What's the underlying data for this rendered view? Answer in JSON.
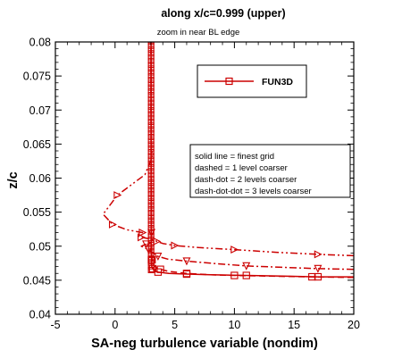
{
  "chart_data": {
    "type": "line",
    "title": "along x/c=0.999 (upper)",
    "subtitle": "zoom in near BL edge",
    "xlabel": "SA-neg turbulence variable (nondim)",
    "ylabel": "z/c",
    "xlim": [
      -5,
      20
    ],
    "ylim": [
      0.04,
      0.08
    ],
    "xticks": [
      "-5",
      "0",
      "5",
      "10",
      "15",
      "20"
    ],
    "yticks": [
      "0.04",
      "0.045",
      "0.05",
      "0.055",
      "0.06",
      "0.065",
      "0.07",
      "0.075",
      "0.08"
    ],
    "grid": false,
    "legend": {
      "position": "top-right",
      "entries": [
        "FUN3D"
      ]
    },
    "annotation": [
      "solid line = finest grid",
      "dashed = 1 level coarser",
      "dash-dot = 2 levels coarser",
      "dash-dot-dot = 3 levels coarser"
    ],
    "colors": {
      "series": "#cc0000",
      "frame": "#000000"
    },
    "series": [
      {
        "style": "solid",
        "x": [
          20,
          17,
          14,
          11,
          8,
          6,
          4.5,
          3.6,
          3.3,
          3.15,
          3.08,
          3.05,
          3.03,
          3.02,
          3.02,
          3.02
        ],
        "y": [
          0.0455,
          0.0455,
          0.0456,
          0.0457,
          0.0458,
          0.0459,
          0.046,
          0.0462,
          0.0464,
          0.0467,
          0.047,
          0.048,
          0.05,
          0.06,
          0.07,
          0.08
        ]
      },
      {
        "style": "dashed",
        "x": [
          20,
          16.5,
          13,
          10,
          8,
          6,
          4.5,
          3.8,
          3.3,
          3.1,
          3.05,
          3.03,
          3.02,
          3.02
        ],
        "y": [
          0.0454,
          0.0455,
          0.0456,
          0.0457,
          0.0458,
          0.046,
          0.0463,
          0.0466,
          0.047,
          0.048,
          0.05,
          0.06,
          0.07,
          0.08
        ]
      },
      {
        "style": "dash-dot",
        "x": [
          20,
          17,
          14,
          11,
          8,
          6,
          4.4,
          3.6,
          3.2,
          2.8,
          2.2,
          2.6,
          3.0,
          3.05,
          3.03,
          3.02,
          3.02
        ],
        "y": [
          0.0466,
          0.0467,
          0.0469,
          0.0471,
          0.0475,
          0.0478,
          0.0481,
          0.0485,
          0.049,
          0.0495,
          0.05,
          0.0503,
          0.0505,
          0.052,
          0.06,
          0.07,
          0.08
        ]
      },
      {
        "style": "dash-dot-dot",
        "x": [
          20,
          17,
          13.5,
          10,
          7,
          5,
          4,
          3.5,
          3.1,
          2.2,
          1.8,
          2.3,
          1.0,
          -0.2,
          -1.0,
          0.2,
          2.5,
          3.1,
          3.05,
          3.02,
          3.02
        ],
        "y": [
          0.0486,
          0.0488,
          0.0491,
          0.0495,
          0.0498,
          0.0501,
          0.0504,
          0.0507,
          0.051,
          0.0513,
          0.0516,
          0.052,
          0.0524,
          0.0532,
          0.0547,
          0.0575,
          0.0605,
          0.063,
          0.065,
          0.07,
          0.08
        ]
      }
    ]
  }
}
